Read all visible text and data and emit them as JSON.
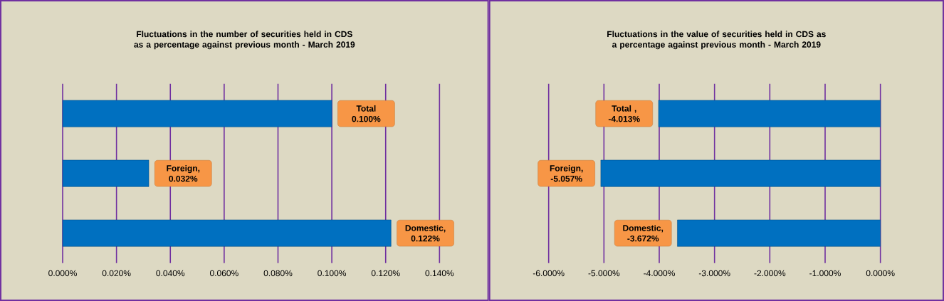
{
  "chart_data": [
    {
      "type": "bar",
      "orientation": "horizontal",
      "title": "Fluctuations in the number of securities held in CDS as a percentage against previous month - March 2019",
      "categories": [
        null,
        null,
        null
      ],
      "values": [
        0.1,
        0.032,
        0.122
      ],
      "value_labels": [
        "Total 0.100%",
        "Foreign, 0.032%",
        "Domestic, 0.122%"
      ],
      "color": "#0070c0",
      "xlim": [
        0,
        0.14
      ],
      "xticks": [
        {
          "value": 0,
          "label": "0.000%"
        },
        {
          "value": 0.02,
          "label": "0.020%"
        },
        {
          "value": 0.04,
          "label": "0.040%"
        },
        {
          "value": 0.06,
          "label": "0.060%"
        },
        {
          "value": 0.08,
          "label": "0.080%"
        },
        {
          "value": 0.1,
          "label": "0.100%"
        },
        {
          "value": 0.12,
          "label": "0.120%"
        },
        {
          "value": 0.14,
          "label": "0.140%"
        }
      ],
      "grid": "x",
      "tick_labels": "x"
    },
    {
      "type": "bar",
      "orientation": "horizontal",
      "title": "Fluctuations in the value of securities held in CDS as a percentage against previous month - March 2019",
      "categories": [
        null,
        null,
        null
      ],
      "values": [
        -4.013,
        -5.057,
        -3.672
      ],
      "value_labels": [
        "Total , -4.013%",
        "Foreign, -5.057%",
        "Domestic, -3.672%"
      ],
      "color": "#0070c0",
      "xlim": [
        -6,
        0
      ],
      "xticks": [
        {
          "value": -6,
          "label": "-6.000%"
        },
        {
          "value": -5,
          "label": "-5.000%"
        },
        {
          "value": -4,
          "label": "-4.000%"
        },
        {
          "value": -3,
          "label": "-3.000%"
        },
        {
          "value": -2,
          "label": "-2.000%"
        },
        {
          "value": -1,
          "label": "-1.000%"
        },
        {
          "value": 0,
          "label": "0.000%"
        }
      ],
      "grid": "x",
      "tick_labels": "x"
    }
  ]
}
